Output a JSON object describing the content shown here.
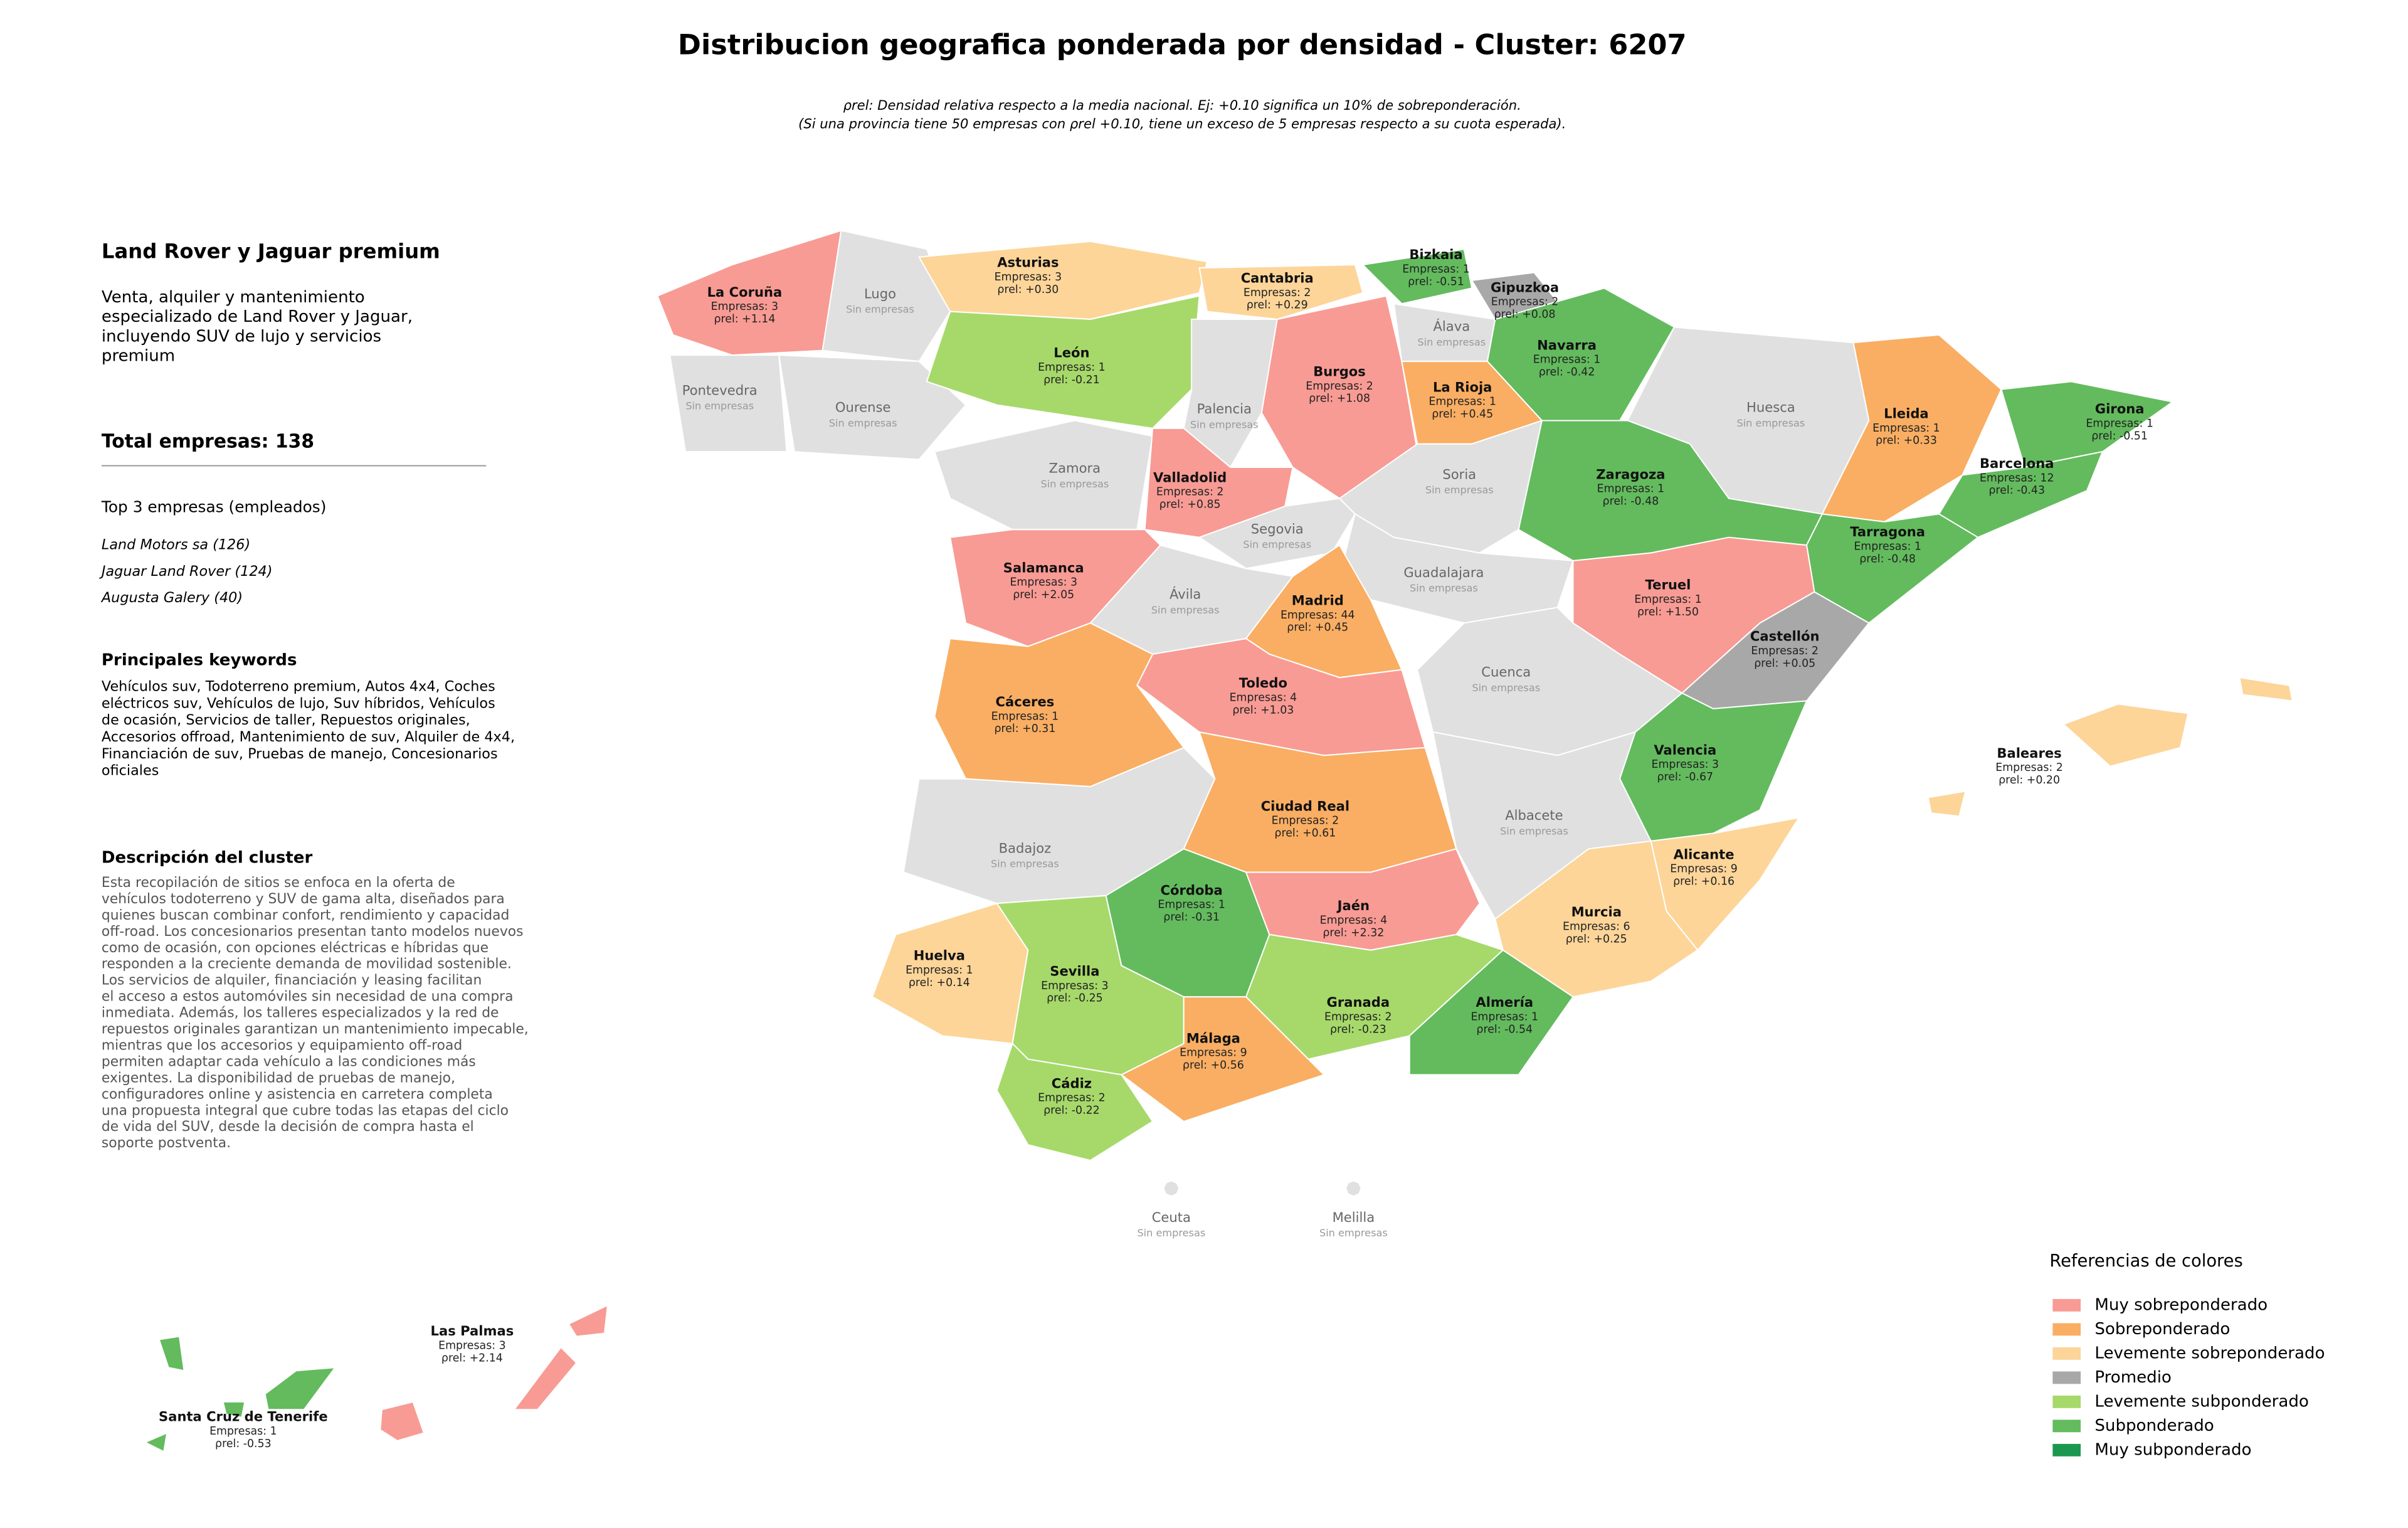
{
  "title": "Distribucion geografica ponderada por densidad - Cluster: 6207",
  "subtitle": [
    "ρrel: Densidad relativa respecto a la media nacional. Ej: +0.10 significa un 10% de sobreponderación.",
    "(Si una provincia tiene 50 empresas con ρrel +0.10, tiene un exceso de 5 empresas respecto a su cuota esperada)."
  ],
  "panel": {
    "heading": "Land Rover y Jaguar premium",
    "summary": [
      "Venta, alquiler y mantenimiento",
      "especializado de Land Rover y Jaguar,",
      "incluyendo SUV de lujo y servicios",
      "premium"
    ],
    "total": "Total empresas: 138",
    "top_heading": "Top 3 empresas (empleados)",
    "top": [
      "Land Motors sa (126)",
      "Jaguar Land Rover (124)",
      "Augusta Galery (40)"
    ],
    "keywords_heading": "Principales keywords",
    "keywords": [
      "Vehículos suv, Todoterreno premium, Autos 4x4, Coches",
      "eléctricos suv, Vehículos de lujo, Suv híbridos, Vehículos",
      "de ocasión, Servicios de taller, Repuestos originales,",
      "Accesorios offroad, Mantenimiento de suv, Alquiler de 4x4,",
      "Financiación de suv, Pruebas de manejo, Concesionarios",
      "oficiales"
    ],
    "description_heading": "Descripción del cluster",
    "description": [
      "Esta recopilación de sitios se enfoca en la oferta de",
      "vehículos todoterreno y SUV de gama alta, diseñados para",
      "quienes buscan combinar confort, rendimiento y capacidad",
      "off-road. Los concesionarios presentan tanto modelos nuevos",
      "como de ocasión, con opciones eléctricas e híbridas que",
      "responden a la creciente demanda de movilidad sostenible.",
      "Los servicios de alquiler, financiación y leasing facilitan",
      "el acceso a estos automóviles sin necesidad de una compra",
      "inmediata. Además, los talleres especializados y la red de",
      "repuestos originales garantizan un mantenimiento impecable,",
      "mientras que los accesorios y equipamiento off-road",
      "permiten adaptar cada vehículo a las condiciones más",
      "exigentes. La disponibilidad de pruebas de manejo,",
      "configuradores online y asistencia en carretera completa",
      "una propuesta integral que cubre todas las etapas del ciclo",
      "de vida del SUV, desde la decisión de compra hasta el",
      "soporte postventa."
    ]
  },
  "no_companies_label": "Sin empresas",
  "no_companies_color": "#e0e0e0",
  "provinces": [
    {
      "name": "La Coruña",
      "count": "Empresas: 3",
      "rho": "ρrel: +1.14",
      "level": 0
    },
    {
      "name": "Lugo"
    },
    {
      "name": "Asturias",
      "count": "Empresas: 3",
      "rho": "ρrel: +0.30",
      "level": 2
    },
    {
      "name": "Cantabria",
      "count": "Empresas: 2",
      "rho": "ρrel: +0.29",
      "level": 2
    },
    {
      "name": "Bizkaia",
      "count": "Empresas: 1",
      "rho": "ρrel: -0.51",
      "level": 5
    },
    {
      "name": "Gipuzkoa",
      "count": "Empresas: 2",
      "rho": "ρrel: +0.08",
      "level": 3
    },
    {
      "name": "Álava"
    },
    {
      "name": "Navarra",
      "count": "Empresas: 1",
      "rho": "ρrel: -0.42",
      "level": 5
    },
    {
      "name": "Pontevedra"
    },
    {
      "name": "Ourense"
    },
    {
      "name": "León",
      "count": "Empresas: 1",
      "rho": "ρrel: -0.21",
      "level": 4
    },
    {
      "name": "Palencia"
    },
    {
      "name": "Burgos",
      "count": "Empresas: 2",
      "rho": "ρrel: +1.08",
      "level": 0
    },
    {
      "name": "La Rioja",
      "count": "Empresas: 1",
      "rho": "ρrel: +0.45",
      "level": 1
    },
    {
      "name": "Huesca"
    },
    {
      "name": "Lleida",
      "count": "Empresas: 1",
      "rho": "ρrel: +0.33",
      "level": 1
    },
    {
      "name": "Girona",
      "count": "Empresas: 1",
      "rho": "ρrel: -0.51",
      "level": 5
    },
    {
      "name": "Barcelona",
      "count": "Empresas: 12",
      "rho": "ρrel: -0.43",
      "level": 5
    },
    {
      "name": "Zaragoza",
      "count": "Empresas: 1",
      "rho": "ρrel: -0.48",
      "level": 5
    },
    {
      "name": "Tarragona",
      "count": "Empresas: 1",
      "rho": "ρrel: -0.48",
      "level": 5
    },
    {
      "name": "Zamora"
    },
    {
      "name": "Valladolid",
      "count": "Empresas: 2",
      "rho": "ρrel: +0.85",
      "level": 0
    },
    {
      "name": "Soria"
    },
    {
      "name": "Segovia"
    },
    {
      "name": "Guadalajara"
    },
    {
      "name": "Salamanca",
      "count": "Empresas: 3",
      "rho": "ρrel: +2.05",
      "level": 0
    },
    {
      "name": "Ávila"
    },
    {
      "name": "Madrid",
      "count": "Empresas: 44",
      "rho": "ρrel: +0.45",
      "level": 1
    },
    {
      "name": "Teruel",
      "count": "Empresas: 1",
      "rho": "ρrel: +1.50",
      "level": 0
    },
    {
      "name": "Castellón",
      "count": "Empresas: 2",
      "rho": "ρrel: +0.05",
      "level": 3
    },
    {
      "name": "Cuenca"
    },
    {
      "name": "Toledo",
      "count": "Empresas: 4",
      "rho": "ρrel: +1.03",
      "level": 0
    },
    {
      "name": "Cáceres",
      "count": "Empresas: 1",
      "rho": "ρrel: +0.31",
      "level": 1
    },
    {
      "name": "Valencia",
      "count": "Empresas: 3",
      "rho": "ρrel: -0.67",
      "level": 5
    },
    {
      "name": "Badajoz"
    },
    {
      "name": "Ciudad Real",
      "count": "Empresas: 2",
      "rho": "ρrel: +0.61",
      "level": 1
    },
    {
      "name": "Albacete"
    },
    {
      "name": "Alicante",
      "count": "Empresas: 9",
      "rho": "ρrel: +0.16",
      "level": 2
    },
    {
      "name": "Murcia",
      "count": "Empresas: 6",
      "rho": "ρrel: +0.25",
      "level": 2
    },
    {
      "name": "Córdoba",
      "count": "Empresas: 1",
      "rho": "ρrel: -0.31",
      "level": 5
    },
    {
      "name": "Jaén",
      "count": "Empresas: 4",
      "rho": "ρrel: +2.32",
      "level": 0
    },
    {
      "name": "Huelva",
      "count": "Empresas: 1",
      "rho": "ρrel: +0.14",
      "level": 2
    },
    {
      "name": "Sevilla",
      "count": "Empresas: 3",
      "rho": "ρrel: -0.25",
      "level": 4
    },
    {
      "name": "Granada",
      "count": "Empresas: 2",
      "rho": "ρrel: -0.23",
      "level": 4
    },
    {
      "name": "Almería",
      "count": "Empresas: 1",
      "rho": "ρrel: -0.54",
      "level": 5
    },
    {
      "name": "Málaga",
      "count": "Empresas: 9",
      "rho": "ρrel: +0.56",
      "level": 1
    },
    {
      "name": "Cádiz",
      "count": "Empresas: 2",
      "rho": "ρrel: -0.22",
      "level": 4
    },
    {
      "name": "Baleares",
      "count": "Empresas: 2",
      "rho": "ρrel: +0.20",
      "level": 2
    },
    {
      "name": "Las Palmas",
      "count": "Empresas: 3",
      "rho": "ρrel: +2.14",
      "level": 0
    },
    {
      "name": "Santa Cruz de Tenerife",
      "count": "Empresas: 1",
      "rho": "ρrel: -0.53",
      "level": 5
    },
    {
      "name": "Ceuta"
    },
    {
      "name": "Melilla"
    }
  ],
  "legend": {
    "title": "Referencias de colores",
    "items": [
      {
        "label": "Muy sobreponderado",
        "color": "#f89b94"
      },
      {
        "label": "Sobreponderado",
        "color": "#f9ae63"
      },
      {
        "label": "Levemente sobreponderado",
        "color": "#fdd599"
      },
      {
        "label": "Promedio",
        "color": "#a8a8a8"
      },
      {
        "label": "Levemente subponderado",
        "color": "#a6d96a"
      },
      {
        "label": "Subponderado",
        "color": "#63bb5e"
      },
      {
        "label": "Muy subponderado",
        "color": "#1a9850"
      }
    ]
  }
}
